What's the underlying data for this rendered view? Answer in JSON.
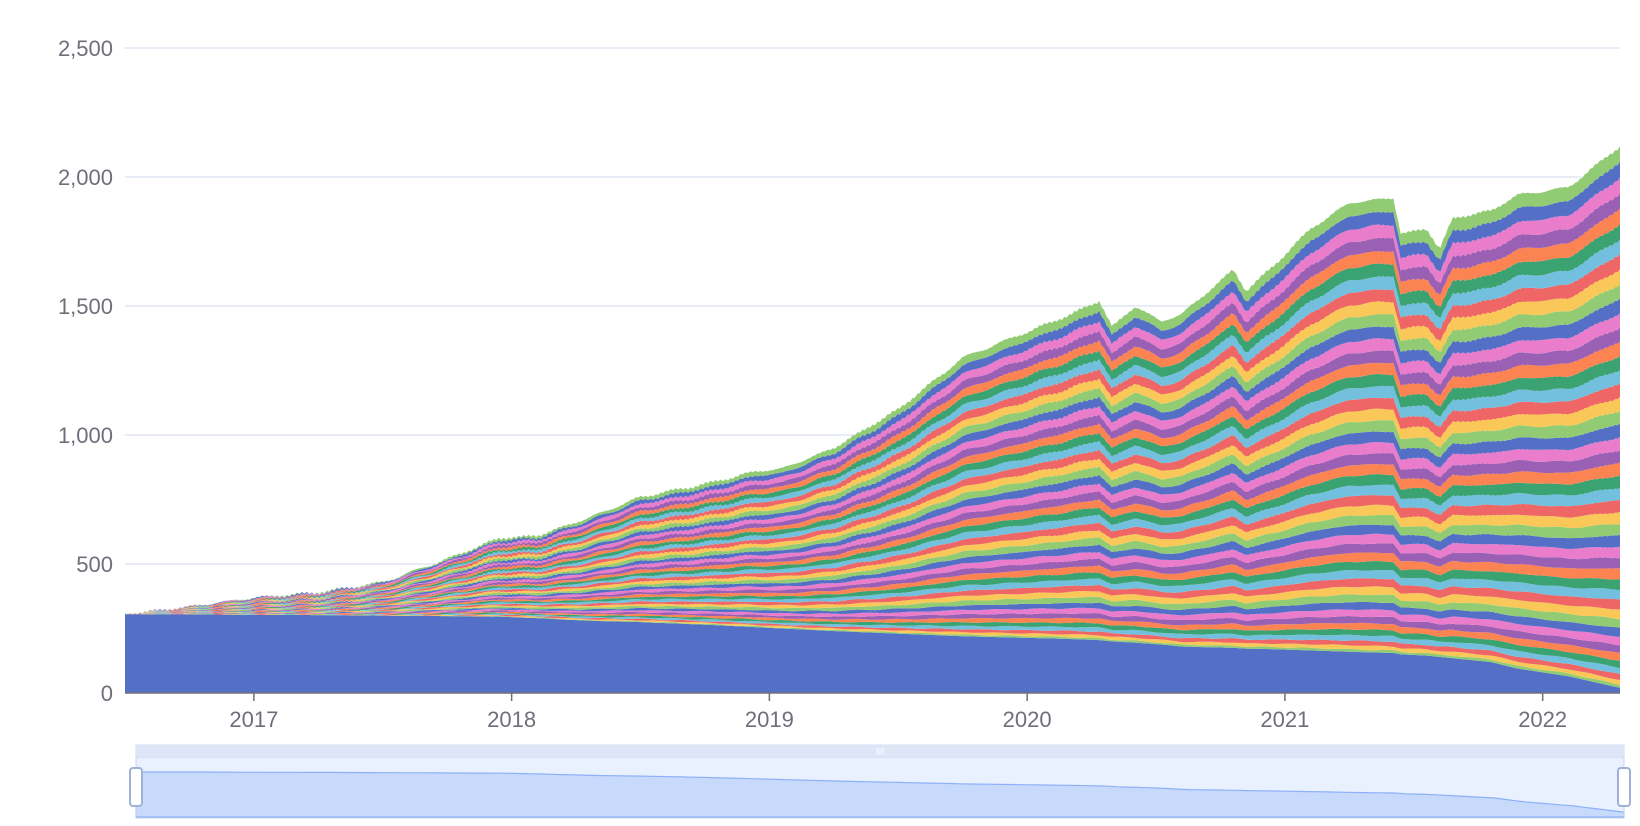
{
  "chart_data": {
    "type": "area",
    "stacked": true,
    "title": "",
    "xlabel": "",
    "ylabel": "",
    "ylim": [
      0,
      2500
    ],
    "y_ticks": [
      "0",
      "500",
      "1,000",
      "1,500",
      "2,000",
      "2,500"
    ],
    "y_tick_values": [
      0,
      500,
      1000,
      1500,
      2000,
      2500
    ],
    "x_ticks": [
      "2017",
      "2018",
      "2019",
      "2020",
      "2021",
      "2022"
    ],
    "x_tick_values": [
      2017,
      2018,
      2019,
      2020,
      2021,
      2022
    ],
    "xlim": [
      2016.5,
      2022.3
    ],
    "grid": true,
    "legend": "none",
    "palette": [
      "#5470c6",
      "#91cc75",
      "#fac858",
      "#ee6666",
      "#73c0de",
      "#3ba272",
      "#fc8452",
      "#9a60b4",
      "#ea7ccc"
    ],
    "envelope": {
      "x": [
        2016.5,
        2016.75,
        2017.0,
        2017.25,
        2017.5,
        2017.75,
        2017.95,
        2018.1,
        2018.3,
        2018.5,
        2018.75,
        2018.95,
        2019.05,
        2019.25,
        2019.5,
        2019.75,
        2019.95,
        2020.15,
        2020.28,
        2020.33,
        2020.42,
        2020.52,
        2020.6,
        2020.8,
        2020.85,
        2020.95,
        2021.1,
        2021.25,
        2021.42,
        2021.45,
        2021.55,
        2021.6,
        2021.65,
        2021.8,
        2021.9,
        2022.1,
        2022.3
      ],
      "total": [
        305,
        335,
        370,
        390,
        430,
        520,
        600,
        610,
        680,
        760,
        810,
        860,
        870,
        950,
        1100,
        1300,
        1380,
        1460,
        1520,
        1420,
        1500,
        1440,
        1470,
        1640,
        1560,
        1650,
        1800,
        1900,
        1920,
        1780,
        1800,
        1720,
        1840,
        1870,
        1930,
        1960,
        2120
      ],
      "base": [
        305,
        305,
        303,
        302,
        300,
        298,
        296,
        290,
        280,
        275,
        265,
        255,
        250,
        240,
        230,
        220,
        215,
        210,
        205,
        200,
        195,
        188,
        180,
        175,
        172,
        170,
        165,
        160,
        155,
        150,
        145,
        140,
        135,
        120,
        95,
        65,
        20
      ]
    }
  },
  "zoom": {
    "start": 0,
    "end": 100,
    "handle_glyph": "III",
    "accent": "#8fb0f7"
  }
}
